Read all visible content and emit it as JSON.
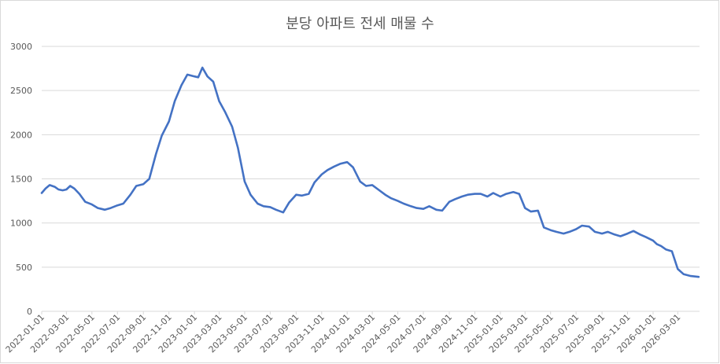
{
  "chart_data": {
    "type": "line",
    "title": "분당 아파트 전세 매물 수",
    "xlabel": "",
    "ylabel": "",
    "ylim": [
      0,
      3000
    ],
    "yticks": [
      0,
      500,
      1000,
      1500,
      2000,
      2500,
      3000
    ],
    "grid": true,
    "legend": "none",
    "line_color": "#4472C4",
    "xlim": [
      "2022-01-01",
      "2026-04-22"
    ],
    "xtick_labels": [
      "2022-01-01",
      "2022-03-01",
      "2022-05-01",
      "2022-07-01",
      "2022-09-01",
      "2022-11-01",
      "2023-01-01",
      "2023-03-01",
      "2023-05-01",
      "2023-07-01",
      "2023-09-01",
      "2023-11-01",
      "2024-01-01",
      "2024-03-01",
      "2024-05-01",
      "2024-07-01",
      "2024-09-01",
      "2024-11-01",
      "2025-01-01",
      "2025-03-01",
      "2025-05-01",
      "2025-07-01",
      "2025-09-01",
      "2025-11-01",
      "2026-01-01",
      "2026-03-01"
    ],
    "series": [
      {
        "x": [
          "2022-01-01",
          "2022-01-10",
          "2022-01-20",
          "2022-02-01",
          "2022-02-10",
          "2022-02-20",
          "2022-03-01",
          "2022-03-10",
          "2022-03-20",
          "2022-04-01",
          "2022-04-15",
          "2022-05-01",
          "2022-05-15",
          "2022-06-01",
          "2022-06-15",
          "2022-07-01",
          "2022-07-15",
          "2022-08-01",
          "2022-08-15",
          "2022-09-01",
          "2022-09-15",
          "2022-10-01",
          "2022-10-15",
          "2022-11-01",
          "2022-11-15",
          "2022-12-01",
          "2022-12-15",
          "2023-01-01",
          "2023-01-10",
          "2023-01-20",
          "2023-02-01",
          "2023-02-15",
          "2023-03-01",
          "2023-03-15",
          "2023-04-01",
          "2023-04-15",
          "2023-05-01",
          "2023-05-15",
          "2023-06-01",
          "2023-06-15",
          "2023-07-01",
          "2023-07-15",
          "2023-08-01",
          "2023-08-15",
          "2023-09-01",
          "2023-09-15",
          "2023-10-01",
          "2023-10-15",
          "2023-11-01",
          "2023-11-15",
          "2023-12-01",
          "2023-12-15",
          "2024-01-01",
          "2024-01-15",
          "2024-02-01",
          "2024-02-15",
          "2024-03-01",
          "2024-03-15",
          "2024-04-01",
          "2024-04-15",
          "2024-05-01",
          "2024-05-15",
          "2024-06-01",
          "2024-06-15",
          "2024-07-01",
          "2024-07-15",
          "2024-08-01",
          "2024-08-15",
          "2024-09-01",
          "2024-09-15",
          "2024-10-01",
          "2024-10-15",
          "2024-11-01",
          "2024-11-15",
          "2024-12-01",
          "2024-12-15",
          "2025-01-01",
          "2025-01-15",
          "2025-02-01",
          "2025-02-15",
          "2025-03-01",
          "2025-03-15",
          "2025-04-01",
          "2025-04-15",
          "2025-05-01",
          "2025-05-15",
          "2025-06-01",
          "2025-06-15",
          "2025-07-01",
          "2025-07-15",
          "2025-08-01",
          "2025-08-15",
          "2025-09-01",
          "2025-09-15",
          "2025-10-01",
          "2025-10-15",
          "2025-11-01",
          "2025-11-15",
          "2025-12-01",
          "2025-12-15",
          "2026-01-01",
          "2026-01-10",
          "2026-01-20",
          "2026-02-01",
          "2026-02-15",
          "2026-03-01",
          "2026-03-15",
          "2026-04-01",
          "2026-04-20"
        ],
        "y": [
          1340,
          1390,
          1430,
          1410,
          1380,
          1370,
          1380,
          1420,
          1390,
          1330,
          1240,
          1210,
          1170,
          1150,
          1170,
          1200,
          1220,
          1320,
          1420,
          1440,
          1500,
          1780,
          1990,
          2150,
          2380,
          2560,
          2680,
          2660,
          2650,
          2760,
          2660,
          2600,
          2380,
          2260,
          2090,
          1850,
          1470,
          1320,
          1220,
          1190,
          1180,
          1150,
          1120,
          1230,
          1320,
          1310,
          1330,
          1460,
          1550,
          1600,
          1640,
          1670,
          1690,
          1630,
          1470,
          1420,
          1430,
          1380,
          1320,
          1280,
          1250,
          1220,
          1190,
          1170,
          1160,
          1190,
          1150,
          1140,
          1240,
          1270,
          1300,
          1320,
          1330,
          1330,
          1300,
          1340,
          1300,
          1330,
          1350,
          1330,
          1170,
          1130,
          1140,
          950,
          920,
          900,
          880,
          900,
          930,
          970,
          960,
          900,
          880,
          900,
          870,
          850,
          880,
          910,
          870,
          840,
          800,
          760,
          740,
          700,
          680,
          480,
          420,
          400,
          390
        ]
      }
    ]
  }
}
